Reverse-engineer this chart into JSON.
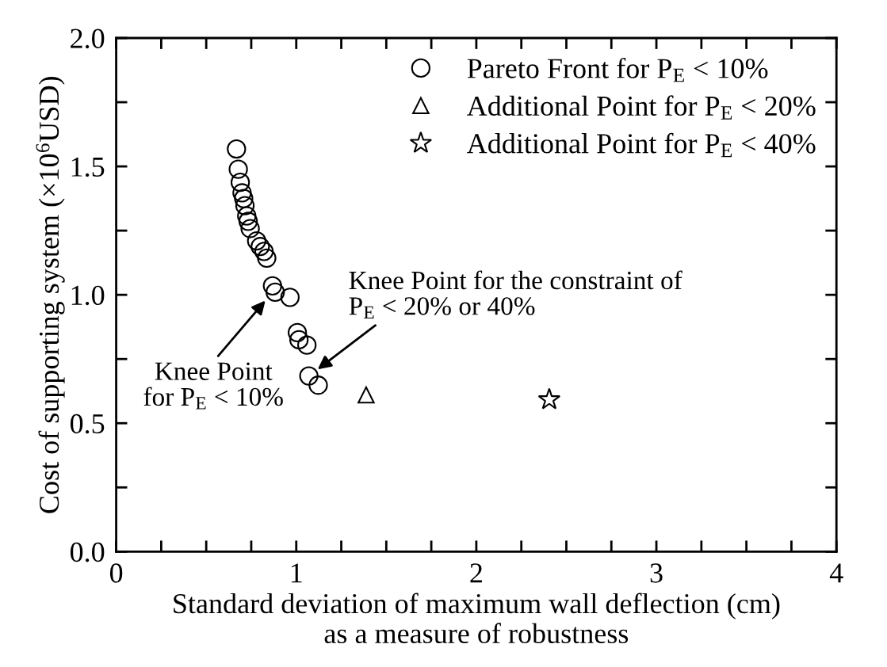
{
  "chart_data": {
    "type": "scatter",
    "xlabel": "Standard deviation of maximum wall deflection (cm)\nas a measure of robustness",
    "ylabel": "Cost of supporting system (×10$^{6}$USD)",
    "series": [
      {
        "name": "Pareto Front for P$_{E}$ < 10%",
        "color": "#000000",
        "marker": "circle",
        "x": [
          0.668,
          0.678,
          0.689,
          0.699,
          0.708,
          0.715,
          0.725,
          0.733,
          0.744,
          0.78,
          0.8,
          0.821,
          0.836,
          0.868,
          0.883,
          0.965,
          1.006,
          1.015,
          1.059,
          1.07,
          1.122
        ],
        "values": [
          1.568,
          1.489,
          1.438,
          1.397,
          1.375,
          1.347,
          1.307,
          1.286,
          1.258,
          1.21,
          1.188,
          1.169,
          1.143,
          1.035,
          1.01,
          0.99,
          0.853,
          0.825,
          0.804,
          0.684,
          0.648
        ]
      },
      {
        "name": "Additional Point for P$_{E}$ < 20%",
        "color": "#000000",
        "marker": "triangle",
        "x": [
          1.388
        ],
        "values": [
          0.61
        ]
      },
      {
        "name": "Additional Point for P$_{E}$ < 40%",
        "color": "#000000",
        "marker": "star",
        "x": [
          2.405
        ],
        "values": [
          0.592
        ]
      }
    ],
    "annotations": [
      {
        "text": "Knee Point\nfor P$_{E}$ < 10%",
        "x": 0.868,
        "y": 1.01
      },
      {
        "text": "Knee Point for the constraint of\nP$_{E}$ < 20% or 40%",
        "x": 1.07,
        "y": 0.684
      }
    ],
    "xlim": [
      0,
      4
    ],
    "ylim": [
      0,
      2.0
    ],
    "xticks": [
      0,
      {
        "value": 0.25,
        "label": null
      },
      {
        "value": 0.5,
        "label": null
      },
      {
        "value": 0.75,
        "label": null
      },
      1,
      {
        "value": 1.25,
        "label": null
      },
      {
        "value": 1.5,
        "label": null
      },
      {
        "value": 1.75,
        "label": null
      },
      2,
      {
        "value": 2.25,
        "label": null
      },
      {
        "value": 2.5,
        "label": null
      },
      {
        "value": 2.75,
        "label": null
      },
      3,
      {
        "value": 3.25,
        "label": null
      },
      {
        "value": 3.5,
        "label": null
      },
      {
        "value": 3.75,
        "label": null
      },
      4
    ],
    "yticks": [
      {
        "value": 0,
        "label": "0.0"
      },
      {
        "value": 0.25,
        "label": null
      },
      0.5,
      {
        "value": 0.75,
        "label": null
      },
      {
        "value": 1,
        "label": "1.0"
      },
      {
        "value": 1.25,
        "label": null
      },
      1.5,
      {
        "value": 1.75,
        "label": null
      },
      {
        "value": 2,
        "label": "2.0"
      }
    ],
    "grid": false,
    "legend": "top right"
  }
}
